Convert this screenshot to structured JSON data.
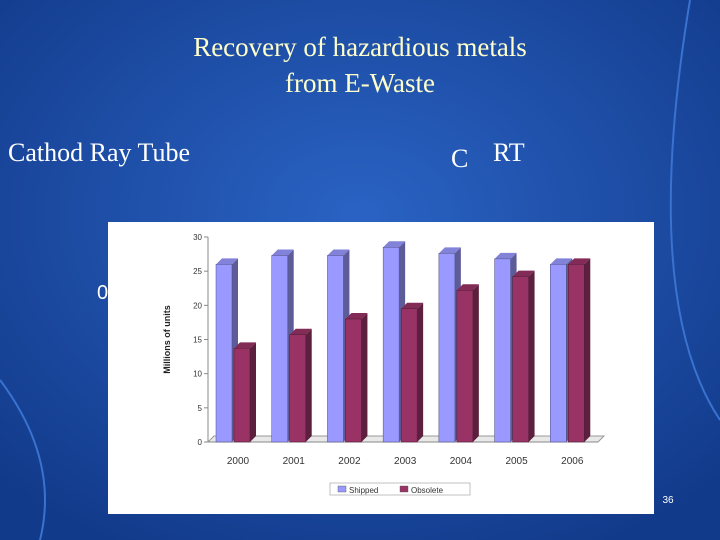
{
  "slide": {
    "title_lines": [
      "Recovery of hazardious metals",
      "from E-Waste"
    ],
    "left_heading": "Cathod Ray Tube",
    "right_heading_1": "C",
    "right_heading_2": "RT",
    "stray_text": "0",
    "page_number": "36"
  },
  "chart_data": {
    "type": "bar",
    "y_label": "Millions of units",
    "categories": [
      "2000",
      "2001",
      "2002",
      "2003",
      "2004",
      "2005",
      "2006"
    ],
    "series": [
      {
        "name": "Shipped",
        "color": "#9999ff",
        "values": [
          26,
          27.3,
          27.3,
          28.5,
          27.6,
          26.8,
          26
        ]
      },
      {
        "name": "Obsolete",
        "color": "#993366",
        "values": [
          13.7,
          15.7,
          18,
          19.5,
          22.2,
          24.2,
          26
        ]
      }
    ],
    "ylim": [
      0,
      30
    ],
    "yticks": [
      0,
      5,
      10,
      15,
      20,
      25,
      30
    ]
  }
}
